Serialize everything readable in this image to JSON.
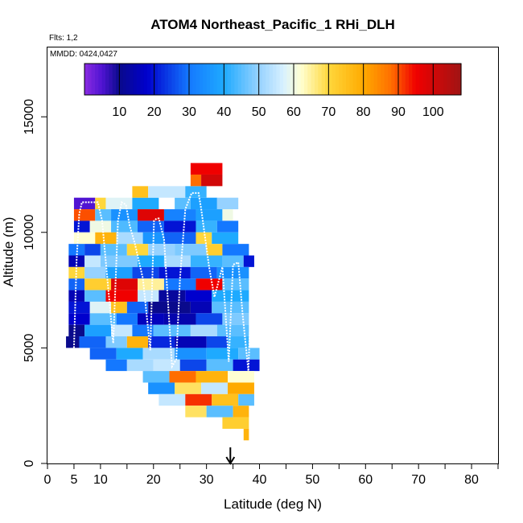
{
  "chart_data": {
    "type": "heatmap",
    "title": "ATOM4 Northeast_Pacific_1 RHi_DLH",
    "flights_label": "Flts: 1,2",
    "dates_label": "MMDD: 0424,0427",
    "xlabel": "Latitude (deg N)",
    "ylabel": "Altitude (m)",
    "xlim": [
      0,
      85
    ],
    "ylim": [
      0,
      18000
    ],
    "x_ticks": [
      0,
      5,
      10,
      20,
      30,
      40,
      50,
      60,
      70,
      80
    ],
    "x_minor_ticks": [
      15,
      25,
      35,
      45,
      55,
      65,
      75,
      85
    ],
    "y_ticks": [
      0,
      5000,
      10000,
      15000
    ],
    "colorbar": {
      "range": [
        0,
        108
      ],
      "tick_values": [
        10,
        20,
        30,
        40,
        50,
        60,
        70,
        80,
        90,
        100
      ],
      "tick_labels": [
        "10",
        "20",
        "30",
        "40",
        "50",
        "60",
        "70",
        "80",
        "90",
        "100"
      ]
    },
    "marker": {
      "x": 34.5,
      "symbol": "down-arrow"
    },
    "grid": false,
    "legend": "colorbar-top",
    "bin_height_m": 500,
    "cells": [
      [
        5,
        9,
        11000,
        5
      ],
      [
        9,
        11,
        11000,
        70
      ],
      [
        11,
        16,
        11000,
        58
      ],
      [
        16,
        21,
        11000,
        40
      ],
      [
        24,
        27,
        11000,
        45
      ],
      [
        27,
        32,
        11000,
        38
      ],
      [
        32,
        36,
        11000,
        50
      ],
      [
        16,
        19,
        11500,
        75
      ],
      [
        19,
        26,
        11500,
        55
      ],
      [
        26,
        30,
        11500,
        42
      ],
      [
        27,
        29,
        12000,
        88
      ],
      [
        29,
        33,
        12000,
        100
      ],
      [
        27,
        33,
        12500,
        95
      ],
      [
        5,
        9,
        10500,
        90
      ],
      [
        9,
        12,
        10500,
        45
      ],
      [
        12,
        17,
        10500,
        35
      ],
      [
        17,
        22,
        10500,
        98
      ],
      [
        22,
        28,
        10500,
        32
      ],
      [
        28,
        33,
        10500,
        38
      ],
      [
        33,
        35,
        10500,
        60
      ],
      [
        5,
        8,
        10000,
        20
      ],
      [
        8,
        12,
        10000,
        60
      ],
      [
        12,
        17,
        10000,
        44
      ],
      [
        17,
        22,
        10000,
        28
      ],
      [
        22,
        28,
        10000,
        20
      ],
      [
        28,
        32,
        10000,
        42
      ],
      [
        32,
        36,
        10000,
        30
      ],
      [
        5,
        9,
        9500,
        62
      ],
      [
        9,
        13,
        9500,
        78
      ],
      [
        13,
        18,
        9500,
        52
      ],
      [
        18,
        22,
        9500,
        36
      ],
      [
        22,
        28,
        9500,
        28
      ],
      [
        28,
        31,
        9500,
        70
      ],
      [
        31,
        36,
        9500,
        40
      ],
      [
        4,
        7,
        9000,
        30
      ],
      [
        7,
        10,
        9000,
        25
      ],
      [
        10,
        15,
        9000,
        45
      ],
      [
        15,
        19,
        9000,
        70
      ],
      [
        19,
        24,
        9000,
        50
      ],
      [
        24,
        30,
        9000,
        48
      ],
      [
        30,
        33,
        9000,
        72
      ],
      [
        33,
        38,
        9000,
        30
      ],
      [
        4,
        7,
        8500,
        15
      ],
      [
        7,
        10,
        8500,
        55
      ],
      [
        10,
        17,
        8500,
        48
      ],
      [
        17,
        22,
        8500,
        40
      ],
      [
        22,
        27,
        8500,
        52
      ],
      [
        27,
        33,
        8500,
        42
      ],
      [
        33,
        37,
        8500,
        45
      ],
      [
        37,
        39,
        8500,
        20
      ],
      [
        4,
        7,
        8000,
        70
      ],
      [
        7,
        11,
        8000,
        50
      ],
      [
        11,
        16,
        8000,
        38
      ],
      [
        16,
        21,
        8000,
        25
      ],
      [
        21,
        27,
        8000,
        20
      ],
      [
        27,
        32,
        8000,
        28
      ],
      [
        32,
        38,
        8000,
        35
      ],
      [
        4,
        7,
        7500,
        28
      ],
      [
        7,
        12,
        7500,
        72
      ],
      [
        12,
        17,
        7500,
        98
      ],
      [
        17,
        22,
        7500,
        65
      ],
      [
        22,
        28,
        7500,
        30
      ],
      [
        28,
        33,
        7500,
        95
      ],
      [
        33,
        38,
        7500,
        45
      ],
      [
        4,
        7,
        7000,
        15
      ],
      [
        7,
        11,
        7000,
        45
      ],
      [
        11,
        17,
        7000,
        95
      ],
      [
        17,
        21,
        7000,
        55
      ],
      [
        21,
        26,
        7000,
        12
      ],
      [
        26,
        31,
        7000,
        18
      ],
      [
        31,
        38,
        7000,
        40
      ],
      [
        4,
        8,
        6500,
        20
      ],
      [
        8,
        12,
        6500,
        58
      ],
      [
        12,
        15,
        6500,
        75
      ],
      [
        15,
        19,
        6500,
        28
      ],
      [
        19,
        27,
        6500,
        10
      ],
      [
        27,
        31,
        6500,
        15
      ],
      [
        31,
        38,
        6500,
        45
      ],
      [
        4,
        8,
        6000,
        18
      ],
      [
        8,
        13,
        6000,
        45
      ],
      [
        13,
        17,
        6000,
        30
      ],
      [
        17,
        22,
        6000,
        16
      ],
      [
        22,
        28,
        6000,
        14
      ],
      [
        28,
        33,
        6000,
        25
      ],
      [
        33,
        38,
        6000,
        48
      ],
      [
        4,
        7,
        5500,
        10
      ],
      [
        7,
        12,
        5500,
        38
      ],
      [
        12,
        16,
        5500,
        55
      ],
      [
        16,
        20,
        5500,
        30
      ],
      [
        20,
        27,
        5500,
        45
      ],
      [
        27,
        32,
        5500,
        52
      ],
      [
        32,
        38,
        5500,
        45
      ],
      [
        3.5,
        6,
        5000,
        10
      ],
      [
        6,
        11,
        5000,
        28
      ],
      [
        11,
        15,
        5000,
        48
      ],
      [
        15,
        19,
        5000,
        78
      ],
      [
        19,
        24,
        5000,
        22
      ],
      [
        24,
        30,
        5000,
        15
      ],
      [
        30,
        34,
        5000,
        25
      ],
      [
        34,
        38,
        5000,
        42
      ],
      [
        8,
        13,
        4500,
        28
      ],
      [
        13,
        18,
        4500,
        40
      ],
      [
        18,
        24,
        4500,
        52
      ],
      [
        24,
        30,
        4500,
        35
      ],
      [
        30,
        36,
        4500,
        40
      ],
      [
        36,
        40,
        4500,
        45
      ],
      [
        11,
        15,
        4000,
        30
      ],
      [
        15,
        20,
        4000,
        52
      ],
      [
        20,
        25,
        4000,
        55
      ],
      [
        25,
        30,
        4000,
        25
      ],
      [
        30,
        35,
        4000,
        45
      ],
      [
        35,
        40,
        4000,
        20
      ],
      [
        18,
        23,
        3500,
        45
      ],
      [
        23,
        28,
        3500,
        88
      ],
      [
        28,
        34,
        3500,
        78
      ],
      [
        34,
        39,
        3500,
        62
      ],
      [
        19,
        24,
        3000,
        35
      ],
      [
        24,
        29,
        3000,
        68
      ],
      [
        29,
        34,
        3000,
        55
      ],
      [
        34,
        39,
        3000,
        80
      ],
      [
        21,
        26,
        2500,
        55
      ],
      [
        26,
        31,
        2500,
        92
      ],
      [
        31,
        36,
        2500,
        75
      ],
      [
        36,
        39,
        2500,
        45
      ],
      [
        26,
        30,
        2000,
        68
      ],
      [
        30,
        35,
        2000,
        45
      ],
      [
        35,
        38,
        2000,
        78
      ],
      [
        33,
        38,
        1500,
        72
      ],
      [
        37,
        38,
        1000,
        78
      ]
    ],
    "flight_track": [
      [
        5.0,
        5000
      ],
      [
        5.5,
        8800
      ],
      [
        6.0,
        10800
      ],
      [
        6.5,
        11300
      ],
      [
        9.5,
        11300
      ],
      [
        10.3,
        10500
      ],
      [
        12.4,
        5200
      ],
      [
        13.3,
        10500
      ],
      [
        14.0,
        11300
      ],
      [
        14.8,
        11200
      ],
      [
        15.5,
        10300
      ],
      [
        16.5,
        9500
      ],
      [
        18.0,
        8000
      ],
      [
        19.4,
        4900
      ],
      [
        20.1,
        10500
      ],
      [
        20.6,
        10600
      ],
      [
        21.0,
        10600
      ],
      [
        22.0,
        9700
      ],
      [
        23.5,
        4200
      ],
      [
        24.3,
        4500
      ],
      [
        25.0,
        8000
      ],
      [
        26.0,
        11000
      ],
      [
        27.2,
        11700
      ],
      [
        28.5,
        11700
      ],
      [
        29.0,
        11000
      ],
      [
        30.5,
        8500
      ],
      [
        31.5,
        7200
      ],
      [
        33.0,
        8500
      ],
      [
        34.2,
        4400
      ],
      [
        35.0,
        8600
      ],
      [
        36.0,
        8700
      ],
      [
        36.8,
        6500
      ],
      [
        37.9,
        4000
      ],
      [
        38.6,
        8500
      ]
    ]
  }
}
